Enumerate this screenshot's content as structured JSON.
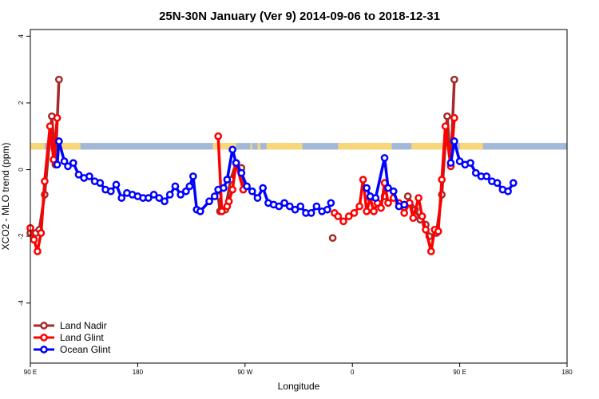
{
  "chart_data": {
    "type": "line",
    "title": "25N-30N January (Ver 9)   2014-09-06 to 2018-12-31",
    "xlabel": "Longitude",
    "ylabel": "XCO2 - MLO trend (ppm)",
    "xlim": [
      -90,
      210
    ],
    "ylim": [
      -5.8,
      4.2
    ],
    "x_ticks": [
      {
        "value": -90,
        "label": "90 E"
      },
      {
        "value": -30,
        "label": "180"
      },
      {
        "value": 30,
        "label": "90 W"
      },
      {
        "value": 90,
        "label": "0"
      },
      {
        "value": 150,
        "label": "90 E"
      },
      {
        "value": 210,
        "label": "180"
      }
    ],
    "y_ticks": [
      -4,
      -2,
      0,
      2,
      4
    ],
    "legend_position": "bottom-left",
    "surface_band": {
      "y_range": [
        0.6,
        0.8
      ],
      "ocean_color": "#a3b8d8",
      "land_color": "#f7d77a",
      "land_ranges": [
        [
          -90,
          -82
        ],
        [
          -73,
          -62
        ],
        [
          12,
          25
        ],
        [
          33,
          34
        ],
        [
          37,
          38.5
        ],
        [
          42,
          62
        ],
        [
          82,
          112
        ],
        [
          123,
          145
        ],
        [
          150,
          163
        ]
      ]
    },
    "series": [
      {
        "name": "Land Nadir",
        "color": "#a52a2a",
        "points": [
          [
            -90,
            -1.9
          ],
          [
            -87,
            -1.9
          ],
          [
            -85,
            -1.8
          ],
          [
            -82,
            -0.75
          ],
          [
            -78,
            1.6
          ],
          [
            -76,
            0.15
          ],
          [
            -74,
            2.7
          ],
          [
            15,
            -0.8
          ],
          [
            16,
            -1.25
          ],
          [
            19,
            -1.2
          ],
          [
            22,
            -0.3
          ],
          [
            25,
            0.2
          ],
          [
            28,
            0.05
          ],
          [
            29,
            -0.6
          ],
          [
            79,
            -2.05
          ],
          [
            108,
            -0.8
          ],
          [
            121,
            -0.8
          ],
          [
            125,
            -1.2
          ],
          [
            128,
            -1.5
          ],
          [
            131,
            -1.65
          ],
          [
            133,
            -2.0
          ],
          [
            137,
            -1.9
          ],
          [
            140,
            -0.75
          ],
          [
            143,
            1.6
          ],
          [
            145,
            0.15
          ],
          [
            147,
            2.7
          ]
        ]
      },
      {
        "name": "Land Glint",
        "color": "#ff0000",
        "points": [
          [
            -90,
            -1.75
          ],
          [
            -88,
            -2.1
          ],
          [
            -86,
            -2.45
          ],
          [
            -84,
            -1.9
          ],
          [
            -82,
            -0.35
          ],
          [
            -79,
            1.3
          ],
          [
            -77,
            0.3
          ],
          [
            -75,
            1.55
          ],
          [
            15,
            1.0
          ],
          [
            17,
            -1.25
          ],
          [
            20,
            -1.1
          ],
          [
            21,
            -0.95
          ],
          [
            23,
            -0.6
          ],
          [
            25,
            0.2
          ],
          [
            29,
            -0.6
          ],
          [
            80,
            -1.3
          ],
          [
            82,
            -1.4
          ],
          [
            85,
            -1.55
          ],
          [
            88,
            -1.4
          ],
          [
            91,
            -1.3
          ],
          [
            94,
            -1.1
          ],
          [
            96,
            -0.3
          ],
          [
            98,
            -1.25
          ],
          [
            100,
            -0.85
          ],
          [
            102,
            -1.25
          ],
          [
            104,
            -1.0
          ],
          [
            106,
            -1.15
          ],
          [
            108,
            -0.4
          ],
          [
            110,
            -1.0
          ],
          [
            113,
            -0.85
          ],
          [
            116,
            -1.0
          ],
          [
            119,
            -1.3
          ],
          [
            122,
            -1.0
          ],
          [
            124,
            -1.45
          ],
          [
            127,
            -0.85
          ],
          [
            129,
            -1.4
          ],
          [
            131,
            -1.8
          ],
          [
            134,
            -2.45
          ],
          [
            136,
            -1.8
          ],
          [
            138,
            -1.85
          ],
          [
            140,
            -0.3
          ],
          [
            142,
            1.3
          ],
          [
            145,
            0.1
          ],
          [
            147,
            1.55
          ]
        ]
      },
      {
        "name": "Ocean Glint",
        "color": "#0000ff",
        "points": [
          [
            -75,
            0.15
          ],
          [
            -74,
            0.85
          ],
          [
            -71,
            0.25
          ],
          [
            -69,
            0.1
          ],
          [
            -66,
            0.2
          ],
          [
            -63,
            -0.15
          ],
          [
            -60,
            -0.25
          ],
          [
            -57,
            -0.2
          ],
          [
            -54,
            -0.35
          ],
          [
            -51,
            -0.4
          ],
          [
            -48,
            -0.6
          ],
          [
            -45,
            -0.65
          ],
          [
            -42,
            -0.45
          ],
          [
            -39,
            -0.85
          ],
          [
            -36,
            -0.7
          ],
          [
            -33,
            -0.75
          ],
          [
            -30,
            -0.8
          ],
          [
            -27,
            -0.85
          ],
          [
            -24,
            -0.85
          ],
          [
            -21,
            -0.75
          ],
          [
            -18,
            -0.85
          ],
          [
            -15,
            -0.95
          ],
          [
            -12,
            -0.75
          ],
          [
            -9,
            -0.5
          ],
          [
            -6,
            -0.75
          ],
          [
            -3,
            -0.65
          ],
          [
            -1,
            -0.5
          ],
          [
            1,
            -0.2
          ],
          [
            3,
            -1.2
          ],
          [
            5,
            -1.25
          ],
          [
            10,
            -0.95
          ],
          [
            13,
            -0.8
          ],
          [
            15,
            -0.6
          ],
          [
            18,
            -0.55
          ],
          [
            20,
            -0.3
          ],
          [
            23,
            0.6
          ],
          [
            25,
            0.2
          ],
          [
            28,
            -0.1
          ],
          [
            31,
            -0.5
          ],
          [
            34,
            -0.65
          ],
          [
            37,
            -0.85
          ],
          [
            40,
            -0.55
          ],
          [
            43,
            -1.0
          ],
          [
            46,
            -1.05
          ],
          [
            49,
            -1.1
          ],
          [
            52,
            -1.0
          ],
          [
            55,
            -1.1
          ],
          [
            58,
            -1.2
          ],
          [
            61,
            -1.1
          ],
          [
            64,
            -1.3
          ],
          [
            67,
            -1.3
          ],
          [
            70,
            -1.1
          ],
          [
            73,
            -1.25
          ],
          [
            76,
            -1.2
          ],
          [
            78,
            -1.0
          ],
          [
            98,
            -0.55
          ],
          [
            100,
            -0.8
          ],
          [
            103,
            -0.85
          ],
          [
            108,
            0.35
          ],
          [
            110,
            -0.55
          ],
          [
            113,
            -0.65
          ],
          [
            116,
            -1.1
          ],
          [
            119,
            -1.05
          ],
          [
            145,
            0.2
          ],
          [
            147,
            0.85
          ],
          [
            150,
            0.25
          ],
          [
            153,
            0.15
          ],
          [
            156,
            0.2
          ],
          [
            159,
            -0.1
          ],
          [
            162,
            -0.2
          ],
          [
            165,
            -0.2
          ],
          [
            168,
            -0.35
          ],
          [
            171,
            -0.4
          ],
          [
            174,
            -0.6
          ],
          [
            177,
            -0.65
          ],
          [
            180,
            -0.4
          ]
        ]
      }
    ]
  }
}
